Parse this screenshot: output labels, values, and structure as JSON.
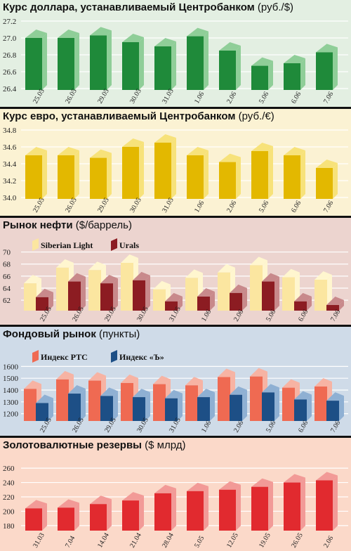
{
  "chart_data": [
    {
      "type": "bar",
      "title": "Курс доллара, устанавливаемый Центробанком",
      "unit": "(руб./$)",
      "categories": [
        "25.05",
        "26.05",
        "29.05",
        "30.05",
        "31.05",
        "1.06",
        "2.06",
        "5.06",
        "6.06",
        "7.06"
      ],
      "yticks": [
        "27.2",
        "27.0",
        "26.8",
        "26.6",
        "26.4"
      ],
      "ylim": [
        26.4,
        27.2
      ],
      "series": [
        {
          "values": [
            27.0,
            27.0,
            27.03,
            26.95,
            26.9,
            27.02,
            26.85,
            26.67,
            26.7,
            26.83
          ],
          "color": "#1f8a3a",
          "light": "#8fce98"
        }
      ],
      "colors": {
        "bg": "#e3efe2"
      }
    },
    {
      "type": "bar",
      "title": "Курс евро, устанавливаемый Центробанком",
      "unit": "(руб./€)",
      "categories": [
        "25.05",
        "26.05",
        "29.05",
        "30.05",
        "31.05",
        "1.06",
        "2.06",
        "5.06",
        "6.06",
        "7.06"
      ],
      "yticks": [
        "34.8",
        "34.6",
        "34.4",
        "34.2",
        "34.0"
      ],
      "ylim": [
        34.0,
        34.8
      ],
      "series": [
        {
          "values": [
            34.5,
            34.5,
            34.47,
            34.6,
            34.65,
            34.5,
            34.42,
            34.55,
            34.5,
            34.35
          ],
          "color": "#e3b800",
          "light": "#f7e27a"
        }
      ],
      "colors": {
        "bg": "#fbf2d3"
      }
    },
    {
      "type": "bar",
      "title": "Рынок нефти",
      "unit": "($/баррель)",
      "categories": [
        "25.05",
        "26.05",
        "29.05",
        "30.05",
        "31.05",
        "1.06",
        "2.06",
        "5.06",
        "6.06",
        "7.06"
      ],
      "yticks": [
        "70",
        "68",
        "66",
        "64",
        "62"
      ],
      "ylim": [
        60.5,
        71
      ],
      "legend": [
        "Siberian Light",
        "Urals"
      ],
      "series": [
        {
          "name": "Siberian Light",
          "values": [
            64.8,
            67.4,
            67.0,
            68.2,
            63.8,
            65.7,
            66.6,
            67.8,
            65.8,
            65.4
          ],
          "color": "#fbe6a0",
          "light": "#fff6cf"
        },
        {
          "name": "Urals",
          "values": [
            62.5,
            65.1,
            64.8,
            65.3,
            61.8,
            62.6,
            63.2,
            65.1,
            61.8,
            61.2
          ],
          "color": "#8c1c22",
          "light": "#c8898b"
        }
      ],
      "colors": {
        "bg": "#ecd4cf"
      }
    },
    {
      "type": "bar",
      "title": "Фондовый рынок",
      "unit": "(пункты)",
      "categories": [
        "25.05",
        "26.05",
        "29.05",
        "30.05",
        "31.05",
        "1.06",
        "2.06",
        "5.06",
        "6.06",
        "7.06"
      ],
      "yticks": [
        "1600",
        "1500",
        "1400",
        "1300",
        "1200"
      ],
      "ylim": [
        1150,
        1650
      ],
      "legend": [
        "Индекс РТС",
        "Индекс «Ъ»"
      ],
      "series": [
        {
          "name": "Индекс РТС",
          "values": [
            1410,
            1490,
            1480,
            1460,
            1450,
            1440,
            1510,
            1515,
            1420,
            1430
          ],
          "color": "#ef6a52",
          "light": "#f7b3a3"
        },
        {
          "name": "Индекс «Ъ»",
          "values": [
            1290,
            1370,
            1350,
            1340,
            1330,
            1340,
            1360,
            1380,
            1320,
            1310
          ],
          "color": "#1d4f86",
          "light": "#8fb0d3"
        }
      ],
      "colors": {
        "bg": "#cfdbe8"
      }
    },
    {
      "type": "bar",
      "title": "Золотовалютные резервы",
      "unit": "($ млрд)",
      "categories": [
        "31.03",
        "7.04",
        "14.04",
        "21.04",
        "28.04",
        "5.05",
        "12.05",
        "19.05",
        "26.05",
        "2.06"
      ],
      "yticks": [
        "260",
        "240",
        "220",
        "200",
        "180"
      ],
      "ylim": [
        175,
        265
      ],
      "series": [
        {
          "values": [
            204,
            205,
            210,
            215,
            225,
            228,
            230,
            234,
            240,
            243
          ],
          "color": "#e12a2f",
          "light": "#f29a97"
        }
      ],
      "colors": {
        "bg": "#fbd9c9"
      }
    }
  ]
}
